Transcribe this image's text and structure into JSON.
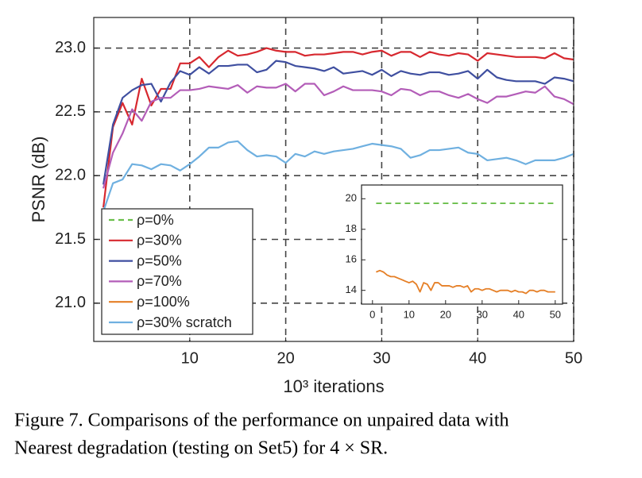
{
  "chart_data": [
    {
      "type": "line",
      "xlabel": "10³ iterations",
      "ylabel": "PSNR (dB)",
      "xlim": [
        0,
        50
      ],
      "ylim": [
        20.7,
        23.24
      ],
      "xticks": [
        10,
        20,
        30,
        40,
        50
      ],
      "yticks": [
        {
          "value": 23,
          "label": "23.0"
        },
        22.5,
        {
          "value": 22,
          "label": "22.0"
        },
        21.5,
        {
          "value": 21,
          "label": "21.0"
        }
      ],
      "grid": true,
      "x": [
        1,
        2,
        3,
        4,
        5,
        6,
        7,
        8,
        9,
        10,
        11,
        12,
        13,
        14,
        15,
        16,
        17,
        18,
        19,
        20,
        21,
        22,
        23,
        24,
        25,
        26,
        27,
        28,
        29,
        30,
        31,
        32,
        33,
        34,
        35,
        36,
        37,
        38,
        39,
        40,
        41,
        42,
        43,
        44,
        45,
        46,
        47,
        48,
        49,
        50
      ],
      "series": [
        {
          "name": "ρ=30%",
          "color": "#d7282f",
          "values": [
            21.75,
            22.38,
            22.57,
            22.4,
            22.76,
            22.55,
            22.68,
            22.68,
            22.88,
            22.88,
            22.93,
            22.85,
            22.93,
            22.98,
            22.94,
            22.95,
            22.97,
            23.0,
            22.98,
            22.97,
            22.97,
            22.94,
            22.95,
            22.95,
            22.96,
            22.97,
            22.97,
            22.95,
            22.97,
            22.98,
            22.94,
            22.97,
            22.97,
            22.93,
            22.97,
            22.95,
            22.94,
            22.96,
            22.95,
            22.9,
            22.96,
            22.95,
            22.94,
            22.93,
            22.93,
            22.93,
            22.92,
            22.96,
            22.92,
            22.91
          ]
        },
        {
          "name": "ρ=50%",
          "color": "#3f4fa0",
          "values": [
            21.93,
            22.4,
            22.61,
            22.67,
            22.71,
            22.72,
            22.58,
            22.73,
            22.82,
            22.79,
            22.85,
            22.8,
            22.86,
            22.86,
            22.87,
            22.87,
            22.81,
            22.83,
            22.9,
            22.89,
            22.86,
            22.85,
            22.84,
            22.82,
            22.85,
            22.8,
            22.81,
            22.82,
            22.79,
            22.83,
            22.78,
            22.82,
            22.8,
            22.79,
            22.81,
            22.81,
            22.79,
            22.8,
            22.82,
            22.76,
            22.83,
            22.77,
            22.75,
            22.74,
            22.74,
            22.74,
            22.72,
            22.77,
            22.76,
            22.74
          ]
        },
        {
          "name": "ρ=70%",
          "color": "#b35db8",
          "values": [
            21.9,
            22.18,
            22.33,
            22.52,
            22.43,
            22.58,
            22.61,
            22.61,
            22.67,
            22.67,
            22.68,
            22.7,
            22.69,
            22.68,
            22.71,
            22.65,
            22.7,
            22.69,
            22.69,
            22.72,
            22.66,
            22.72,
            22.72,
            22.63,
            22.66,
            22.7,
            22.67,
            22.67,
            22.67,
            22.66,
            22.63,
            22.68,
            22.67,
            22.63,
            22.66,
            22.66,
            22.63,
            22.61,
            22.64,
            22.6,
            22.57,
            22.62,
            22.62,
            22.64,
            22.66,
            22.65,
            22.7,
            22.62,
            22.6,
            22.56
          ]
        },
        {
          "name": "ρ=30% scratch",
          "color": "#6fb0e0",
          "values": [
            21.72,
            21.94,
            21.97,
            22.09,
            22.08,
            22.05,
            22.09,
            22.08,
            22.04,
            22.09,
            22.15,
            22.22,
            22.22,
            22.26,
            22.27,
            22.2,
            22.15,
            22.16,
            22.15,
            22.1,
            22.17,
            22.15,
            22.19,
            22.17,
            22.19,
            22.2,
            22.21,
            22.23,
            22.25,
            22.24,
            22.23,
            22.21,
            22.14,
            22.16,
            22.2,
            22.2,
            22.21,
            22.22,
            22.18,
            22.17,
            22.12,
            22.13,
            22.14,
            22.12,
            22.09,
            22.12,
            22.12,
            22.12,
            22.14,
            22.17
          ]
        }
      ]
    },
    {
      "type": "line",
      "xlim": [
        -3,
        52
      ],
      "ylim": [
        13.1,
        20.9
      ],
      "xticks": [
        0,
        10,
        20,
        30,
        40,
        50
      ],
      "yticks": [
        14,
        16,
        18,
        20
      ],
      "grid": false,
      "x": [
        1,
        2,
        3,
        4,
        5,
        6,
        7,
        8,
        9,
        10,
        11,
        12,
        13,
        14,
        15,
        16,
        17,
        18,
        19,
        20,
        21,
        22,
        23,
        24,
        25,
        26,
        27,
        28,
        29,
        30,
        31,
        32,
        33,
        34,
        35,
        36,
        37,
        38,
        39,
        40,
        41,
        42,
        43,
        44,
        45,
        46,
        47,
        48,
        49,
        50
      ],
      "series": [
        {
          "name": "ρ=0%",
          "color": "#6abf4b",
          "dashed": true,
          "values": [
            19.7,
            19.7,
            19.7,
            19.7,
            19.7,
            19.7,
            19.7,
            19.7,
            19.7,
            19.7,
            19.7,
            19.7,
            19.7,
            19.7,
            19.7,
            19.7,
            19.7,
            19.7,
            19.7,
            19.7,
            19.7,
            19.7,
            19.7,
            19.7,
            19.7,
            19.7,
            19.7,
            19.7,
            19.7,
            19.7,
            19.7,
            19.7,
            19.7,
            19.7,
            19.7,
            19.7,
            19.7,
            19.7,
            19.7,
            19.7,
            19.7,
            19.7,
            19.7,
            19.7,
            19.7,
            19.7,
            19.7,
            19.7,
            19.7,
            19.7
          ]
        },
        {
          "name": "ρ=100%",
          "color": "#e57f26",
          "values": [
            15.2,
            15.3,
            15.2,
            15.0,
            14.9,
            14.9,
            14.8,
            14.7,
            14.6,
            14.5,
            14.6,
            14.4,
            13.9,
            14.5,
            14.4,
            14.0,
            14.5,
            14.5,
            14.3,
            14.3,
            14.3,
            14.2,
            14.3,
            14.3,
            14.2,
            14.3,
            13.9,
            14.1,
            14.1,
            14.0,
            14.1,
            14.1,
            14.0,
            13.9,
            14.0,
            14.0,
            14.0,
            13.9,
            14.0,
            13.9,
            13.9,
            13.8,
            14.0,
            14.0,
            13.9,
            14.0,
            14.0,
            13.9,
            13.9,
            13.9
          ]
        }
      ]
    }
  ],
  "caption": [
    "Figure 7. Comparisons of the performance on unpaired data with",
    "Nearest degradation (testing on Set5) for 4 × SR."
  ]
}
